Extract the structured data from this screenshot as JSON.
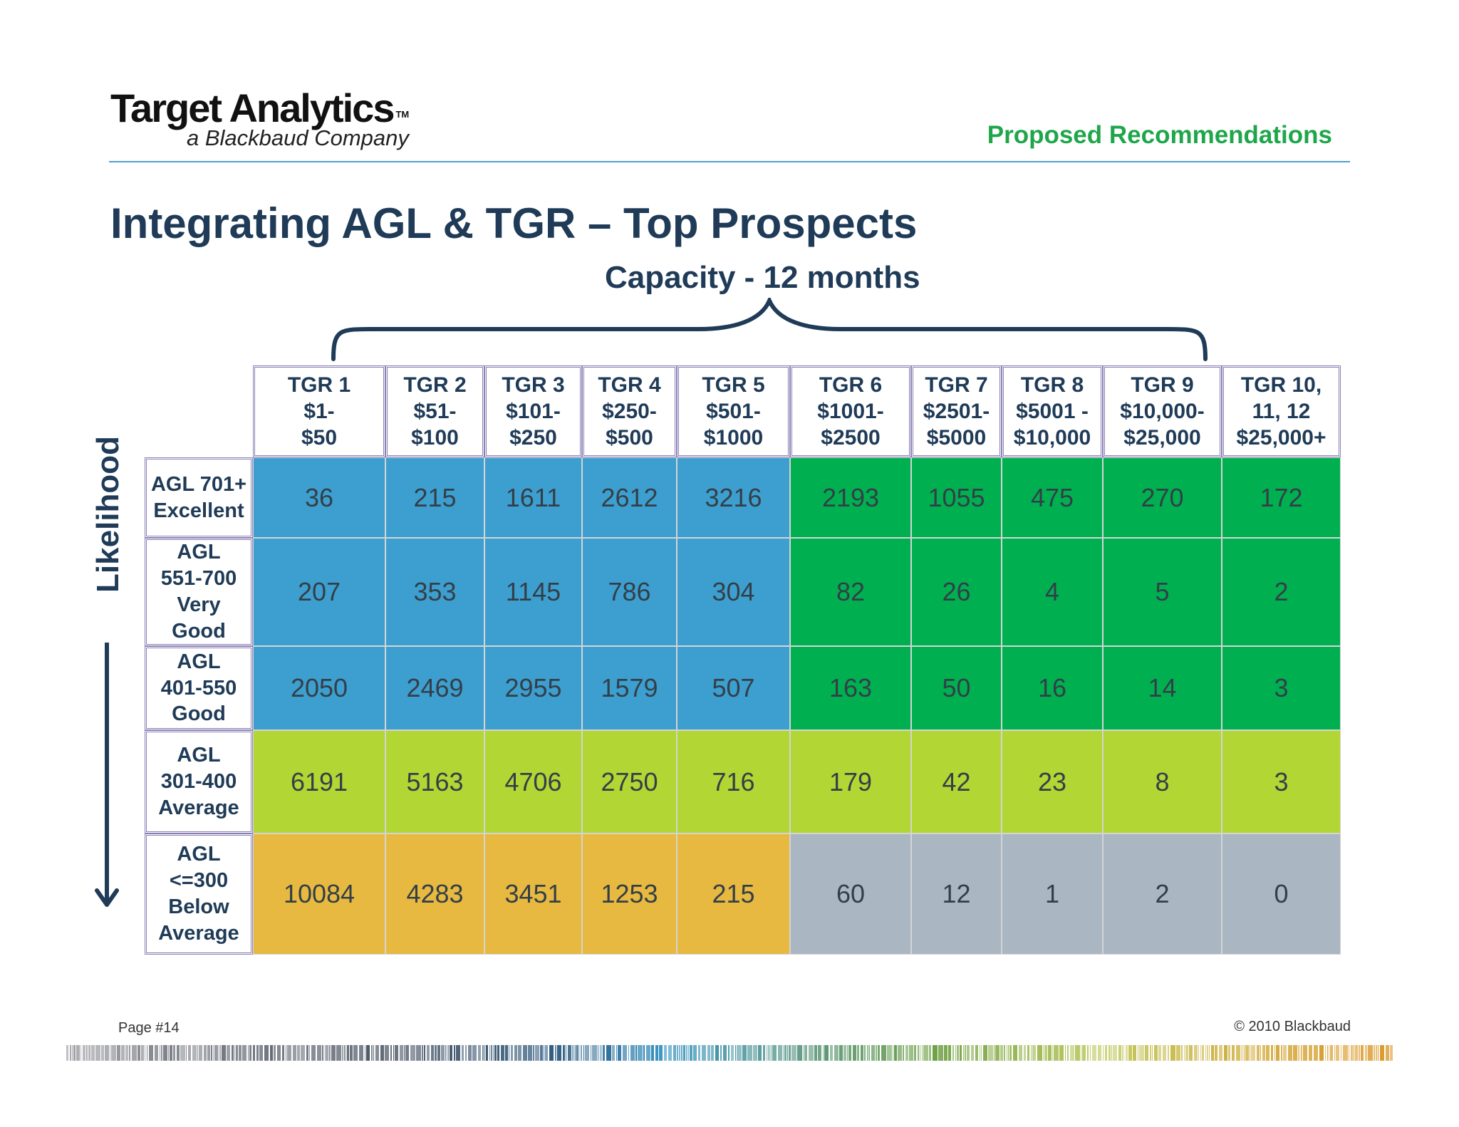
{
  "header": {
    "logo_title": "Target Analytics",
    "logo_tm": "TM",
    "logo_subtitle": "a Blackbaud Company",
    "section_label": "Proposed Recommendations"
  },
  "title": "Integrating AGL & TGR –  Top Prospects",
  "capacity_label": "Capacity - 12 months",
  "likelihood_label": "Likelihood",
  "table": {
    "columns": [
      [
        "TGR 1",
        "$1-",
        "$50"
      ],
      [
        "TGR 2",
        "$51-",
        "$100"
      ],
      [
        "TGR 3",
        "$101-",
        "$250"
      ],
      [
        "TGR 4",
        "$250-",
        "$500"
      ],
      [
        "TGR 5",
        "$501-",
        "$1000"
      ],
      [
        "TGR 6",
        "$1001-",
        "$2500"
      ],
      [
        "TGR 7",
        "$2501-",
        "$5000"
      ],
      [
        "TGR 8",
        "$5001 -",
        "$10,000"
      ],
      [
        "TGR 9",
        "$10,000-",
        "$25,000"
      ],
      [
        "TGR 10,",
        "11, 12",
        "$25,000+"
      ]
    ],
    "rows": [
      {
        "label": [
          "AGL 701+",
          "Excellent"
        ],
        "values": [
          "36",
          "215",
          "1611",
          "2612",
          "3216",
          "2193",
          "1055",
          "475",
          "270",
          "172"
        ]
      },
      {
        "label": [
          "AGL",
          "551-700",
          "Very",
          "Good"
        ],
        "values": [
          "207",
          "353",
          "1145",
          "786",
          "304",
          "82",
          "26",
          "4",
          "5",
          "2"
        ]
      },
      {
        "label": [
          "AGL",
          "401-550",
          "Good"
        ],
        "values": [
          "2050",
          "2469",
          "2955",
          "1579",
          "507",
          "163",
          "50",
          "16",
          "14",
          "3"
        ]
      },
      {
        "label": [
          "AGL",
          "301-400",
          "Average"
        ],
        "values": [
          "6191",
          "5163",
          "4706",
          "2750",
          "716",
          "179",
          "42",
          "23",
          "8",
          "3"
        ]
      },
      {
        "label": [
          "AGL",
          "<=300",
          "Below",
          "Average"
        ],
        "values": [
          "10084",
          "4283",
          "3451",
          "1253",
          "215",
          "60",
          "12",
          "1",
          "2",
          "0"
        ]
      }
    ],
    "cell_colors": [
      [
        "#3d9fcf",
        "#3d9fcf",
        "#3d9fcf",
        "#3d9fcf",
        "#3d9fcf",
        "#00b050",
        "#00b050",
        "#00b050",
        "#00b050",
        "#00b050"
      ],
      [
        "#3d9fcf",
        "#3d9fcf",
        "#3d9fcf",
        "#3d9fcf",
        "#3d9fcf",
        "#00b050",
        "#00b050",
        "#00b050",
        "#00b050",
        "#00b050"
      ],
      [
        "#3d9fcf",
        "#3d9fcf",
        "#3d9fcf",
        "#3d9fcf",
        "#3d9fcf",
        "#00b050",
        "#00b050",
        "#00b050",
        "#00b050",
        "#00b050"
      ],
      [
        "#b2d634",
        "#b2d634",
        "#b2d634",
        "#b2d634",
        "#b2d634",
        "#b2d634",
        "#b2d634",
        "#b2d634",
        "#b2d634",
        "#b2d634"
      ],
      [
        "#e8b940",
        "#e8b940",
        "#e8b940",
        "#e8b940",
        "#e8b940",
        "#aab6c2",
        "#aab6c2",
        "#aab6c2",
        "#aab6c2",
        "#aab6c2"
      ]
    ]
  },
  "footer": {
    "page": "Page #14",
    "copyright": "© 2010 Blackbaud"
  },
  "colors": {
    "title": "#1f3b57",
    "section_label": "#1fa64b",
    "rule": "#4ea0cf",
    "header_border": "#8a7fb5"
  }
}
